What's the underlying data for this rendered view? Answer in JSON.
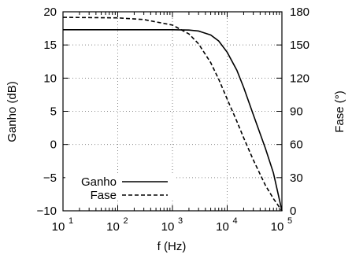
{
  "chart_data": {
    "type": "line",
    "xlabel": "f (Hz)",
    "ylabel_left": "Ganho (dB)",
    "ylabel_right": "Fase (°)",
    "x_scale": "log",
    "xlim": [
      10,
      100000
    ],
    "ylim_left": [
      -10,
      20
    ],
    "ylim_right": [
      0,
      180
    ],
    "x_ticks": [
      {
        "value": 10,
        "base": "10",
        "exp": "1"
      },
      {
        "value": 100,
        "base": "10",
        "exp": "2"
      },
      {
        "value": 1000,
        "base": "10",
        "exp": "3"
      },
      {
        "value": 10000,
        "base": "10",
        "exp": "4"
      },
      {
        "value": 100000,
        "base": "10",
        "exp": "5"
      }
    ],
    "y_ticks_left": [
      "20",
      "15",
      "10",
      "5",
      "0",
      "−5",
      "−10"
    ],
    "y_ticks_right": [
      "180",
      "150",
      "120",
      "90",
      "60",
      "30",
      "0"
    ],
    "grid": true,
    "legend_position": "bottom-left",
    "series": [
      {
        "name": "Ganho",
        "axis": "left",
        "style": "solid",
        "x": [
          10,
          100,
          1000,
          2000,
          3000,
          5000,
          7000,
          10000,
          15000,
          20000,
          30000,
          50000,
          70000,
          100000
        ],
        "values": [
          17.3,
          17.3,
          17.3,
          17.25,
          17.1,
          16.5,
          15.6,
          13.9,
          11.2,
          8.6,
          4.5,
          -0.6,
          -4.3,
          -10
        ]
      },
      {
        "name": "Fase",
        "axis": "right",
        "style": "dashed",
        "x": [
          10,
          100,
          300,
          1000,
          2000,
          3000,
          5000,
          7000,
          10000,
          15000,
          20000,
          30000,
          50000,
          70000,
          100000
        ],
        "values": [
          175,
          174.5,
          173,
          168,
          160,
          151,
          134,
          119,
          101,
          81,
          66,
          46,
          23,
          11,
          0
        ]
      }
    ]
  }
}
